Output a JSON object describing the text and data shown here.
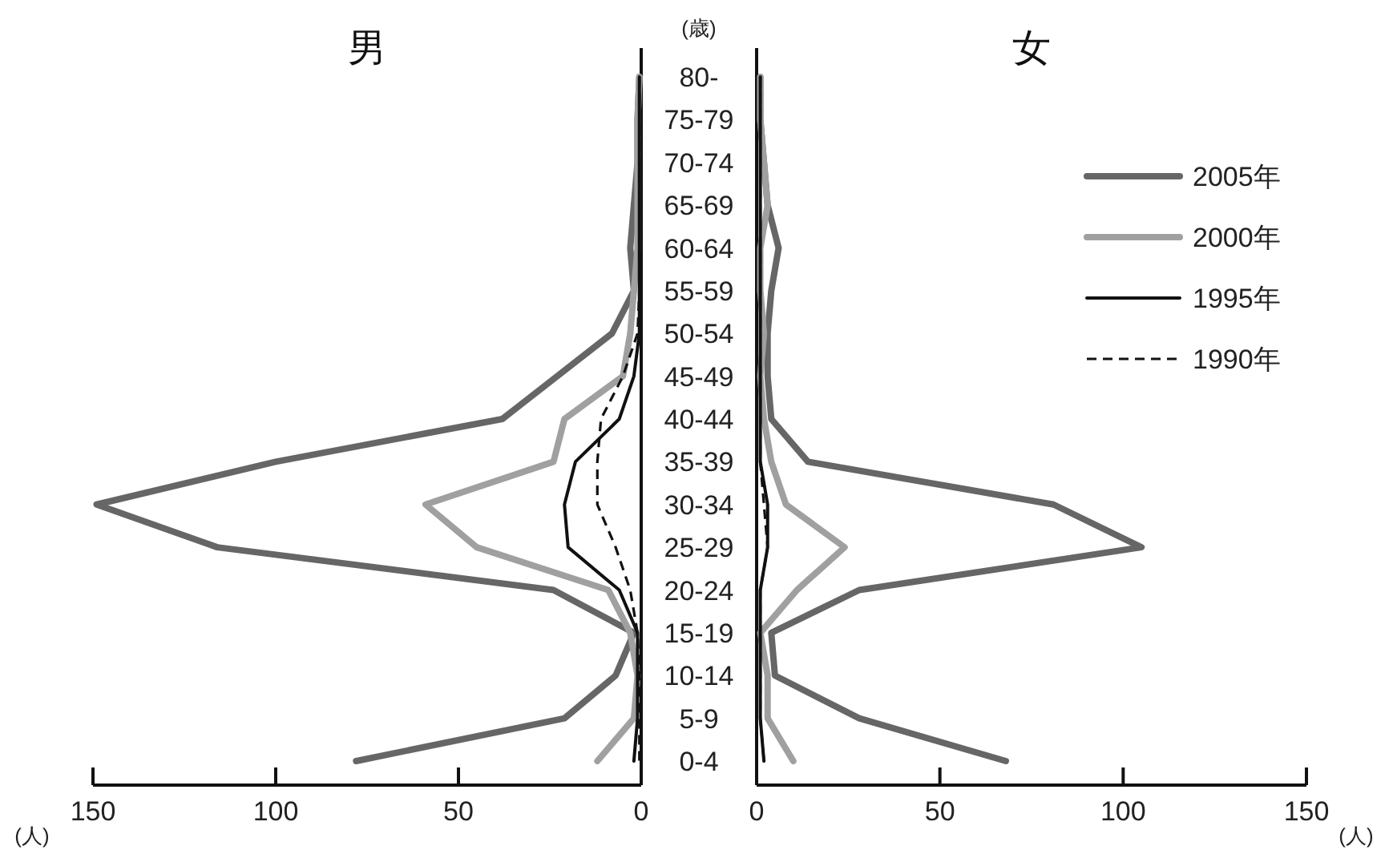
{
  "chart_data": [
    {
      "type": "line",
      "orientation": "horizontal",
      "title": "男",
      "ylabel": "(歳)",
      "xlabel": "(人)",
      "categories": [
        "80-",
        "75-79",
        "70-74",
        "65-69",
        "60-64",
        "55-59",
        "50-54",
        "45-49",
        "40-44",
        "35-39",
        "30-34",
        "25-29",
        "20-24",
        "15-19",
        "10-14",
        "5-9",
        "0-4"
      ],
      "xlim": [
        150,
        0
      ],
      "xticks": [
        150,
        100,
        50,
        0
      ],
      "grid": false,
      "legend": false,
      "marker": "none",
      "series": [
        {
          "color": "#666666",
          "line_style": "solid",
          "values": [
            0.5,
            1,
            1,
            2,
            3,
            2,
            8,
            23,
            38,
            100,
            149,
            116,
            24,
            2,
            7,
            21,
            78
          ]
        },
        {
          "color": "#a0a0a0",
          "line_style": "solid",
          "values": [
            0.5,
            1,
            1,
            1,
            1,
            2,
            3,
            5,
            21,
            24,
            59,
            45,
            9,
            3,
            1,
            2,
            12
          ]
        },
        {
          "color": "#111111",
          "line_style": "solid",
          "values": [
            0.5,
            0.5,
            0.5,
            0.5,
            0.5,
            0.5,
            0.5,
            2,
            6,
            18,
            21,
            20,
            6,
            1,
            1,
            1,
            2
          ]
        },
        {
          "color": "#111111",
          "line_style": "dashed",
          "values": [
            0.5,
            0.5,
            0.5,
            0.5,
            0.5,
            0.5,
            1,
            5,
            11,
            12,
            12,
            7,
            3,
            1,
            0.5,
            0.5,
            0.5
          ]
        }
      ]
    },
    {
      "type": "line",
      "orientation": "horizontal",
      "title": "女",
      "xlabel": "(人)",
      "tick_labels": "x",
      "xlim": [
        0,
        150
      ],
      "xticks": [
        0,
        50,
        100,
        150
      ],
      "grid": false,
      "legend": "right",
      "marker": "none",
      "series": [
        {
          "name": "2005年",
          "color": "#666666",
          "line_style": "solid",
          "values": [
            1,
            1,
            2,
            3,
            6,
            4,
            3,
            3,
            4,
            14,
            81,
            105,
            28,
            4,
            5,
            28,
            68
          ]
        },
        {
          "name": "2000年",
          "color": "#a0a0a0",
          "line_style": "solid",
          "values": [
            1,
            1,
            2,
            3,
            1,
            1,
            2,
            1,
            2,
            4,
            8,
            24,
            11,
            1,
            3,
            3,
            10
          ]
        },
        {
          "name": "1995年",
          "color": "#111111",
          "line_style": "solid",
          "values": [
            1,
            1,
            1,
            1,
            1,
            1,
            1,
            1,
            1,
            1,
            3,
            3,
            1,
            1,
            1,
            1,
            2
          ]
        },
        {
          "name": "1990年",
          "color": "#111111",
          "line_style": "dashed",
          "values": [
            1,
            1,
            1,
            1,
            1,
            1,
            1,
            1,
            1,
            1,
            2,
            3,
            1,
            1,
            1,
            1,
            2
          ]
        }
      ]
    }
  ]
}
